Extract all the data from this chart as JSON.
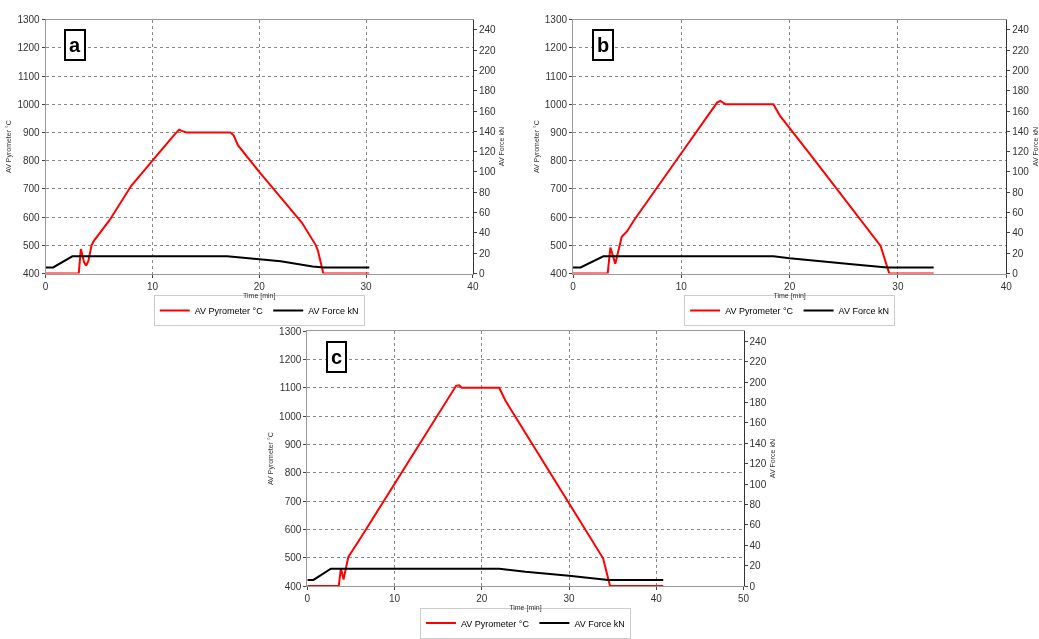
{
  "chart_data": [
    {
      "type": "line",
      "annotations": [
        "a"
      ],
      "xlabel": "Time [min]",
      "ylabel": "AV Pyrometer °C",
      "y2label": "AV Force kN",
      "xlim": [
        0,
        40
      ],
      "xticks": [
        0,
        10,
        20,
        30,
        40
      ],
      "ylim": [
        400,
        1300
      ],
      "yticks": [
        400,
        500,
        600,
        700,
        800,
        900,
        1000,
        1100,
        1200,
        1300
      ],
      "y2lim": [
        0,
        250
      ],
      "y2ticks": [
        0,
        20,
        40,
        60,
        80,
        100,
        120,
        140,
        160,
        180,
        200,
        220,
        240
      ],
      "grid": true,
      "legend": "bottom",
      "marker": "none",
      "series": [
        {
          "name": "AV Pyrometer °C",
          "color": "#ff0000",
          "x": [
            0,
            3.1,
            3.3,
            3.6,
            3.8,
            4.0,
            4.3,
            4.5,
            6,
            8,
            10,
            12,
            12.5,
            12.8,
            13.2,
            17.3,
            17.6,
            18,
            20,
            22,
            24,
            25.3,
            25.5,
            26,
            30.3
          ],
          "values": [
            400,
            400,
            487,
            440,
            428,
            445,
            500,
            515,
            590,
            710,
            800,
            890,
            910,
            905,
            900,
            900,
            890,
            855,
            760,
            670,
            580,
            500,
            480,
            400,
            400
          ]
        },
        {
          "name": "AV Force kN",
          "color": "#000000",
          "axis": "y2",
          "x": [
            0,
            0.7,
            2.5,
            17,
            19,
            22,
            25,
            26,
            30.3
          ],
          "values": [
            6,
            6,
            17,
            17,
            15,
            12,
            7,
            6,
            6
          ]
        }
      ]
    },
    {
      "type": "line",
      "annotations": [
        "b"
      ],
      "xlabel": "Time [min]",
      "ylabel": "AV Pyrometer °C",
      "y2label": "AV Force kN",
      "xlim": [
        0,
        40
      ],
      "xticks": [
        0,
        10,
        20,
        30,
        40
      ],
      "ylim": [
        400,
        1300
      ],
      "yticks": [
        400,
        500,
        600,
        700,
        800,
        900,
        1000,
        1100,
        1200,
        1300
      ],
      "y2lim": [
        0,
        250
      ],
      "y2ticks": [
        0,
        20,
        40,
        60,
        80,
        100,
        120,
        140,
        160,
        180,
        200,
        220,
        240
      ],
      "grid": true,
      "legend": "bottom",
      "marker": "none",
      "series": [
        {
          "name": "AV Pyrometer °C",
          "color": "#ff0000",
          "x": [
            0,
            3.2,
            3.45,
            3.9,
            4.5,
            5.0,
            5.65,
            9.9,
            13.3,
            13.6,
            14.1,
            18.5,
            19.1,
            22.4,
            28.4,
            29.2,
            33.3
          ],
          "values": [
            400,
            400,
            492,
            435,
            530,
            550,
            590,
            821,
            1006,
            1012,
            1000,
            1000,
            960,
            798,
            498,
            400,
            400
          ]
        },
        {
          "name": "AV Force kN",
          "color": "#000000",
          "axis": "y2",
          "x": [
            0,
            0.7,
            2.8,
            18.5,
            20,
            26,
            29,
            33.3
          ],
          "values": [
            6,
            6,
            17,
            17,
            15,
            9,
            6,
            6
          ]
        }
      ]
    },
    {
      "type": "line",
      "annotations": [
        "c"
      ],
      "xlabel": "Time [min]",
      "ylabel": "AV Pyrometer °C",
      "y2label": "AV Force kN",
      "xlim": [
        0,
        50
      ],
      "xticks": [
        0,
        10,
        20,
        30,
        40,
        50
      ],
      "ylim": [
        400,
        1300
      ],
      "yticks": [
        400,
        500,
        600,
        700,
        800,
        900,
        1000,
        1100,
        1200,
        1300
      ],
      "y2lim": [
        0,
        250
      ],
      "y2ticks": [
        0,
        20,
        40,
        60,
        80,
        100,
        120,
        140,
        160,
        180,
        200,
        220,
        240
      ],
      "grid": true,
      "legend": "bottom",
      "marker": "none",
      "series": [
        {
          "name": "AV Pyrometer °C",
          "color": "#ff0000",
          "x": [
            0,
            3.6,
            3.85,
            4.15,
            4.7,
            6.05,
            17.05,
            17.4,
            17.7,
            22,
            22.7,
            33.9,
            34.7,
            40.8
          ],
          "values": [
            400,
            400,
            463,
            423,
            503,
            567,
            1107,
            1109,
            1100,
            1100,
            1055,
            498,
            400,
            400
          ]
        },
        {
          "name": "AV Force kN",
          "color": "#000000",
          "axis": "y2",
          "x": [
            0,
            0.7,
            2.7,
            22,
            25,
            30,
            34.5,
            40.8
          ],
          "values": [
            6,
            6,
            17,
            17,
            14,
            10,
            6,
            6
          ]
        }
      ]
    }
  ]
}
